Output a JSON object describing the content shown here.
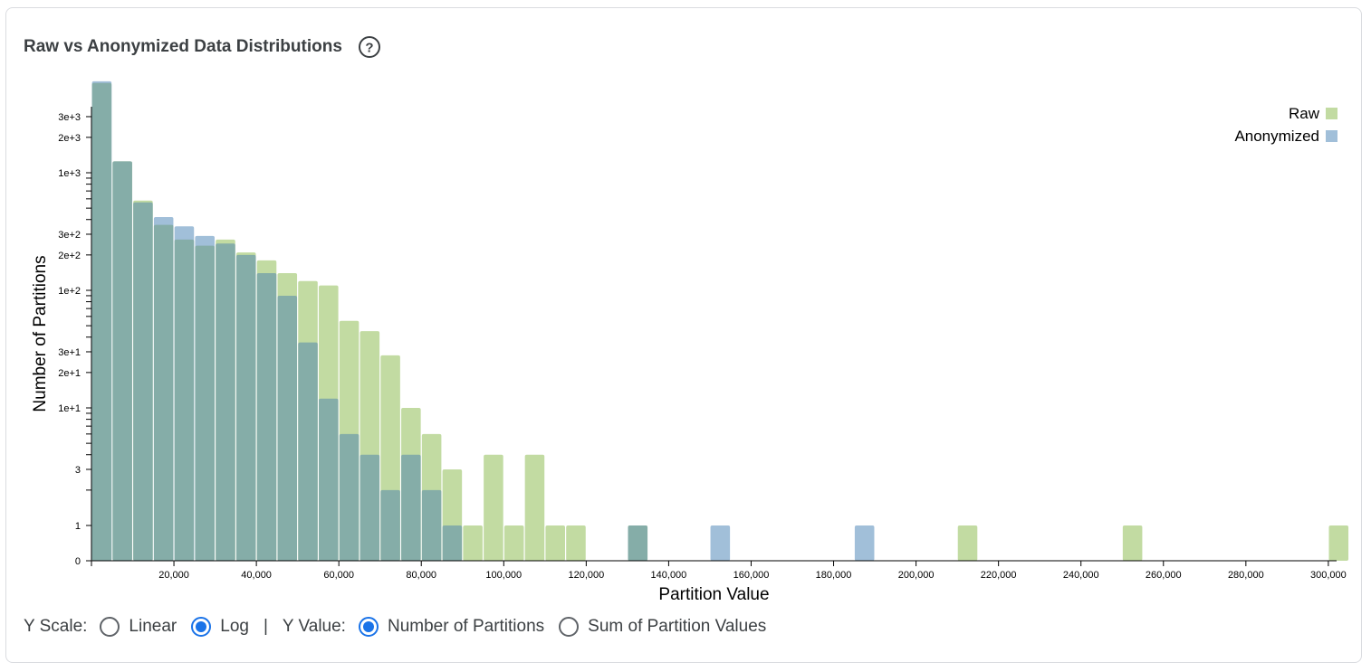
{
  "header": {
    "title": "Raw vs Anonymized Data Distributions",
    "help_icon": "help-circle-icon"
  },
  "controls": {
    "y_scale_label": "Y Scale:",
    "y_scale_options": [
      "Linear",
      "Log"
    ],
    "y_scale_selected": "Log",
    "separator": "|",
    "y_value_label": "Y Value:",
    "y_value_options": [
      "Number of Partitions",
      "Sum of Partition Values"
    ],
    "y_value_selected": "Number of Partitions"
  },
  "colors": {
    "raw": "#c2dba2",
    "anonymized": "#a1bfd9",
    "overlap": "#85ada8",
    "accent": "#1a73e8"
  },
  "chart_data": {
    "type": "bar",
    "xlabel": "Partition Value",
    "ylabel": "Number of Partitions",
    "y_scale": "log",
    "bin_width": 5000,
    "xlim": [
      0,
      302000
    ],
    "x_ticks": [
      20000,
      40000,
      60000,
      80000,
      100000,
      120000,
      140000,
      160000,
      180000,
      200000,
      220000,
      240000,
      260000,
      280000,
      300000
    ],
    "x_tick_labels": [
      "20,000",
      "40,000",
      "60,000",
      "80,000",
      "100,000",
      "120,000",
      "140,000",
      "160,000",
      "180,000",
      "200,000",
      "220,000",
      "240,000",
      "260,000",
      "280,000",
      "300,000"
    ],
    "y_ticks": [
      0,
      1,
      3,
      10,
      20,
      30,
      100,
      200,
      300,
      1000,
      2000,
      3000
    ],
    "y_tick_labels": [
      "0",
      "1",
      "3",
      "1e+1",
      "2e+1",
      "3e+1",
      "1e+2",
      "2e+2",
      "3e+2",
      "1e+3",
      "2e+3",
      "3e+3"
    ],
    "legend": [
      {
        "name": "Raw",
        "key": "raw"
      },
      {
        "name": "Anonymized",
        "key": "anonymized"
      }
    ],
    "legend_position": "top-right",
    "grid": false,
    "bins": [
      0,
      5000,
      10000,
      15000,
      20000,
      25000,
      30000,
      35000,
      40000,
      45000,
      50000,
      55000,
      60000,
      65000,
      70000,
      75000,
      80000,
      85000,
      90000,
      95000,
      100000,
      105000,
      110000,
      115000,
      130000,
      150000,
      185000,
      210000,
      250000,
      300000
    ],
    "series": [
      {
        "name": "Raw",
        "values": [
          5800,
          1250,
          580,
          360,
          270,
          240,
          270,
          210,
          180,
          140,
          120,
          110,
          55,
          45,
          28,
          10,
          6,
          3,
          1,
          4,
          1,
          4,
          1,
          1,
          1,
          0,
          0,
          1,
          1,
          1
        ]
      },
      {
        "name": "Anonymized",
        "values": [
          6000,
          1250,
          560,
          420,
          350,
          290,
          250,
          200,
          140,
          90,
          36,
          12,
          6,
          4,
          2,
          4,
          2,
          1,
          0,
          0,
          0,
          0,
          0,
          0,
          1,
          1,
          1,
          0,
          0,
          0
        ]
      }
    ]
  }
}
